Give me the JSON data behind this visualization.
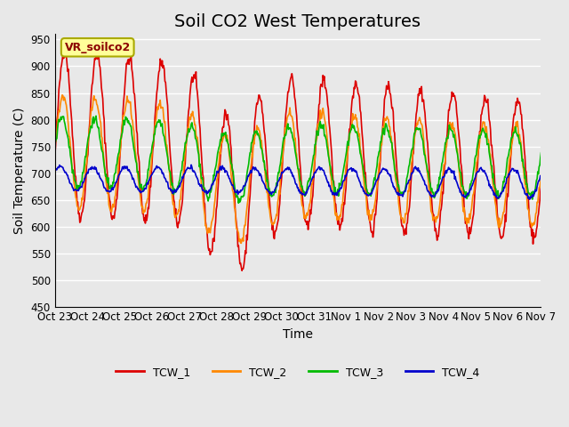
{
  "title": "Soil CO2 West Temperatures",
  "xlabel": "Time",
  "ylabel": "Soil Temperature (C)",
  "ylim": [
    450,
    960
  ],
  "annotation_text": "VR_soilco2",
  "x_tick_labels": [
    "Oct 23",
    "Oct 24",
    "Oct 25",
    "Oct 26",
    "Oct 27",
    "Oct 28",
    "Oct 29",
    "Oct 30",
    "Oct 31",
    "Nov 1",
    "Nov 2",
    "Nov 3",
    "Nov 4",
    "Nov 5",
    "Nov 6",
    "Nov 7"
  ],
  "line_colors": [
    "#dd0000",
    "#ff8800",
    "#00bb00",
    "#0000cc"
  ],
  "line_labels": [
    "TCW_1",
    "TCW_2",
    "TCW_3",
    "TCW_4"
  ],
  "background_color": "#e8e8e8",
  "plot_bg_color": "#e8e8e8",
  "grid_color": "#ffffff",
  "legend_box_color": "#ffff99",
  "legend_box_edge": "#aaaa00",
  "title_fontsize": 14,
  "axis_label_fontsize": 10,
  "tick_fontsize": 8.5,
  "yticks": [
    450,
    500,
    550,
    600,
    650,
    700,
    750,
    800,
    850,
    900,
    950
  ]
}
